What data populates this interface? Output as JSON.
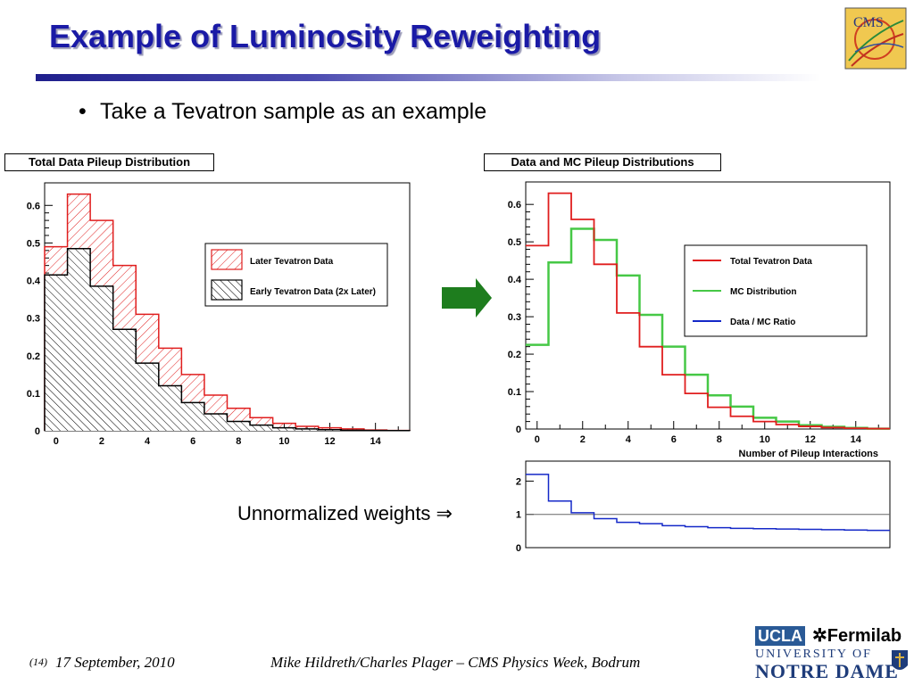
{
  "slide": {
    "title": "Example of Luminosity Reweighting",
    "bullet": "Take a Tevatron sample as an example",
    "arrow_label": "Unnormalized weights ⇒",
    "footer_number": "(14)",
    "footer_date": "17 September, 2010",
    "footer_authors": "Mike Hildreth/Charles Plager – CMS Physics Week, Bodrum",
    "logo_text": "CMS",
    "sponsor_logos": [
      "UCLA",
      "Fermilab",
      "UNIVERSITY OF",
      "NOTRE DAME"
    ]
  },
  "colors": {
    "title": "#1a1aa6",
    "red": "#e01e1e",
    "green": "#46c846",
    "blue": "#1428c8",
    "arrow": "#1e7d1e"
  },
  "chart_data": [
    {
      "type": "histogram",
      "title": "Total Data Pileup Distribution",
      "x_ticks": [
        "0",
        "2",
        "4",
        "6",
        "8",
        "10",
        "12",
        "14"
      ],
      "y_ticks": [
        "0",
        "0.1",
        "0.2",
        "0.3",
        "0.4",
        "0.5",
        "0.6"
      ],
      "xlim": [
        -0.5,
        15.5
      ],
      "ylim": [
        0,
        0.66
      ],
      "bin_edges": [
        -0.5,
        0.5,
        1.5,
        2.5,
        3.5,
        4.5,
        5.5,
        6.5,
        7.5,
        8.5,
        9.5,
        10.5,
        11.5,
        12.5,
        13.5,
        14.5,
        15.5
      ],
      "legend_position": "top-right",
      "series": [
        {
          "name": "Later Tevatron Data",
          "hatch": "red",
          "values": [
            0.49,
            0.63,
            0.56,
            0.44,
            0.31,
            0.22,
            0.15,
            0.095,
            0.06,
            0.035,
            0.02,
            0.012,
            0.008,
            0.005,
            0.002,
            0.001
          ]
        },
        {
          "name": "Early Tevatron Data (2x Later)",
          "hatch": "black",
          "values": [
            0.415,
            0.485,
            0.385,
            0.27,
            0.18,
            0.12,
            0.075,
            0.045,
            0.025,
            0.015,
            0.008,
            0.005,
            0.003,
            0.0015,
            0.001,
            0.0005
          ]
        }
      ]
    },
    {
      "type": "histogram",
      "title": "Data and MC Pileup Distributions",
      "xlabel": "Number of Pileup Interactions",
      "x_ticks": [
        "0",
        "2",
        "4",
        "6",
        "8",
        "10",
        "12",
        "14"
      ],
      "y_ticks": [
        "0",
        "0.1",
        "0.2",
        "0.3",
        "0.4",
        "0.5",
        "0.6"
      ],
      "xlim": [
        -0.5,
        15.5
      ],
      "ylim": [
        0,
        0.66
      ],
      "legend_position": "top-right",
      "series": [
        {
          "name": "Total Tevatron Data",
          "values": [
            0.49,
            0.63,
            0.56,
            0.44,
            0.31,
            0.22,
            0.145,
            0.095,
            0.058,
            0.034,
            0.02,
            0.012,
            0.007,
            0.004,
            0.002,
            0.001
          ]
        },
        {
          "name": "MC Distribution",
          "values": [
            0.225,
            0.445,
            0.535,
            0.505,
            0.41,
            0.305,
            0.22,
            0.145,
            0.09,
            0.06,
            0.03,
            0.02,
            0.01,
            0.006,
            0.003,
            0.001
          ]
        },
        {
          "name": "Data / MC Ratio"
        }
      ]
    },
    {
      "type": "histogram",
      "title": "",
      "y_ticks": [
        "0",
        "1",
        "2"
      ],
      "xlim": [
        -0.5,
        15.5
      ],
      "ylim": [
        0,
        2.6
      ],
      "reference_line": 1,
      "series": [
        {
          "name": "Data / MC Ratio",
          "values": [
            2.2,
            1.4,
            1.05,
            0.87,
            0.76,
            0.72,
            0.66,
            0.63,
            0.6,
            0.58,
            0.57,
            0.56,
            0.55,
            0.54,
            0.53,
            0.52
          ]
        }
      ]
    }
  ]
}
